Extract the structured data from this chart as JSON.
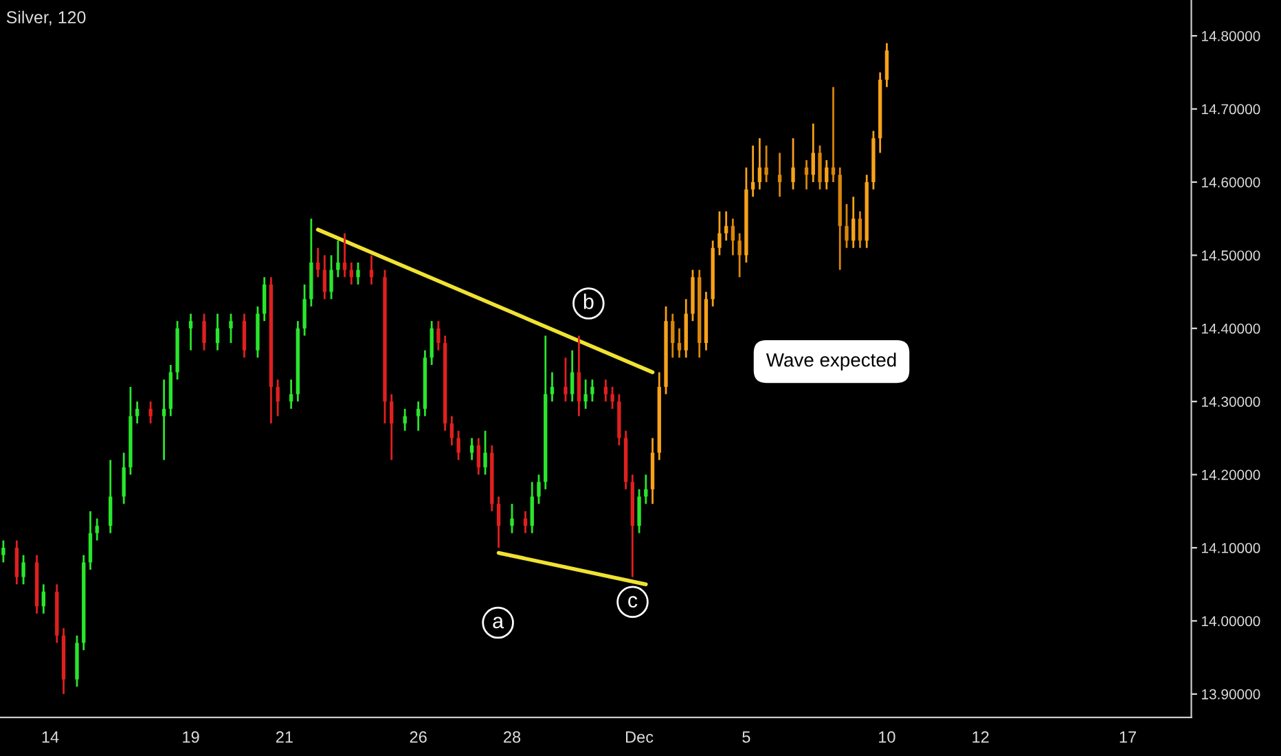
{
  "chart_data": {
    "type": "candlestick",
    "title": "Silver, 120",
    "ylim": [
      13.868,
      14.849
    ],
    "yticks": [
      {
        "value": 13.9,
        "label": "13.90000"
      },
      {
        "value": 14.0,
        "label": "14.00000"
      },
      {
        "value": 14.1,
        "label": "14.10000"
      },
      {
        "value": 14.2,
        "label": "14.20000"
      },
      {
        "value": 14.3,
        "label": "14.30000"
      },
      {
        "value": 14.4,
        "label": "14.40000"
      },
      {
        "value": 14.5,
        "label": "14.50000"
      },
      {
        "value": 14.6,
        "label": "14.60000"
      },
      {
        "value": 14.7,
        "label": "14.70000"
      },
      {
        "value": 14.8,
        "label": "14.80000"
      }
    ],
    "grid": false,
    "categories": [
      null,
      null,
      null,
      null,
      null,
      null,
      null,
      "14",
      null,
      null,
      null,
      null,
      null,
      null,
      null,
      null,
      null,
      null,
      null,
      null,
      null,
      null,
      null,
      null,
      null,
      null,
      null,
      null,
      "19",
      null,
      null,
      null,
      null,
      null,
      null,
      null,
      null,
      null,
      null,
      null,
      null,
      null,
      "21",
      null,
      null,
      null,
      null,
      null,
      null,
      null,
      null,
      null,
      null,
      null,
      null,
      null,
      null,
      null,
      null,
      null,
      null,
      null,
      "26",
      null,
      null,
      null,
      null,
      null,
      null,
      null,
      null,
      null,
      null,
      null,
      null,
      null,
      "28",
      null,
      null,
      null,
      null,
      null,
      null,
      null,
      null,
      null,
      null,
      null,
      null,
      null,
      null,
      null,
      null,
      null,
      null,
      "Dec",
      null,
      null,
      null,
      null,
      null,
      null,
      null,
      null,
      null,
      null,
      null,
      null,
      null,
      null,
      null,
      "5",
      null,
      null,
      null,
      null,
      null,
      null,
      null,
      null,
      null,
      null,
      null,
      null,
      null,
      null,
      null,
      null,
      null,
      null,
      null,
      null,
      "10",
      null,
      null,
      null,
      null,
      null,
      null,
      null,
      null,
      null,
      null,
      null,
      null,
      null,
      "12",
      null,
      null,
      null,
      null,
      null,
      null,
      null,
      null,
      null,
      null,
      null,
      null,
      null,
      null,
      null,
      null,
      null,
      null,
      null,
      null,
      null,
      "17",
      null,
      null,
      null,
      null,
      null,
      null,
      null,
      null,
      null
    ],
    "series": [
      {
        "type": "candlestick",
        "ohlc": [
          [
            14.09,
            14.11,
            14.08,
            14.1
          ],
          null,
          [
            14.1,
            14.11,
            14.05,
            14.06
          ],
          [
            14.06,
            14.09,
            14.05,
            14.08
          ],
          null,
          [
            14.08,
            14.09,
            14.01,
            14.02
          ],
          [
            14.02,
            14.05,
            14.01,
            14.04
          ],
          null,
          [
            14.04,
            14.05,
            13.97,
            13.98
          ],
          [
            13.98,
            13.99,
            13.9,
            13.92
          ],
          null,
          [
            13.92,
            13.98,
            13.91,
            13.97
          ],
          [
            13.97,
            14.09,
            13.96,
            14.08
          ],
          [
            14.08,
            14.15,
            14.07,
            14.12
          ],
          [
            14.12,
            14.14,
            14.11,
            14.13
          ],
          null,
          [
            14.13,
            14.22,
            14.12,
            14.17
          ],
          null,
          [
            14.17,
            14.23,
            14.16,
            14.21
          ],
          [
            14.21,
            14.32,
            14.2,
            14.28
          ],
          [
            14.28,
            14.3,
            14.27,
            14.29
          ],
          null,
          [
            14.29,
            14.3,
            14.27,
            14.28
          ],
          null,
          [
            14.28,
            14.33,
            14.22,
            14.29
          ],
          [
            14.29,
            14.35,
            14.28,
            14.34
          ],
          [
            14.34,
            14.41,
            14.33,
            14.4
          ],
          null,
          [
            14.4,
            14.42,
            14.37,
            14.41
          ],
          null,
          [
            14.41,
            14.42,
            14.37,
            14.38
          ],
          null,
          [
            14.38,
            14.42,
            14.37,
            14.4
          ],
          null,
          [
            14.4,
            14.42,
            14.38,
            14.41
          ],
          null,
          [
            14.41,
            14.42,
            14.36,
            14.37
          ],
          null,
          [
            14.37,
            14.43,
            14.36,
            14.42
          ],
          [
            14.42,
            14.47,
            14.41,
            14.46
          ],
          [
            14.46,
            14.47,
            14.27,
            14.32
          ],
          [
            14.32,
            14.33,
            14.28,
            14.3
          ],
          null,
          [
            14.3,
            14.33,
            14.29,
            14.31
          ],
          [
            14.31,
            14.41,
            14.3,
            14.4
          ],
          [
            14.4,
            14.46,
            14.39,
            14.44
          ],
          [
            14.44,
            14.55,
            14.43,
            14.49
          ],
          [
            14.49,
            14.51,
            14.47,
            14.48
          ],
          [
            14.48,
            14.5,
            14.44,
            14.45
          ],
          [
            14.45,
            14.5,
            14.44,
            14.48
          ],
          [
            14.48,
            14.52,
            14.47,
            14.49
          ],
          [
            14.49,
            14.53,
            14.47,
            14.48
          ],
          [
            14.48,
            14.49,
            14.46,
            14.47
          ],
          [
            14.47,
            14.49,
            14.46,
            14.48
          ],
          null,
          [
            14.48,
            14.5,
            14.46,
            14.47
          ],
          null,
          [
            14.47,
            14.48,
            14.27,
            14.3
          ],
          [
            14.3,
            14.31,
            14.22,
            14.27
          ],
          null,
          [
            14.27,
            14.29,
            14.26,
            14.28
          ],
          null,
          [
            14.28,
            14.3,
            14.26,
            14.29
          ],
          [
            14.29,
            14.37,
            14.28,
            14.36
          ],
          [
            14.36,
            14.41,
            14.35,
            14.4
          ],
          [
            14.4,
            14.41,
            14.37,
            14.38
          ],
          [
            14.38,
            14.39,
            14.26,
            14.27
          ],
          [
            14.27,
            14.28,
            14.24,
            14.25
          ],
          [
            14.25,
            14.26,
            14.22,
            14.23
          ],
          null,
          [
            14.23,
            14.25,
            14.22,
            14.24
          ],
          [
            14.24,
            14.25,
            14.2,
            14.21
          ],
          [
            14.21,
            14.26,
            14.2,
            14.23
          ],
          [
            14.23,
            14.24,
            14.15,
            14.16
          ],
          [
            14.16,
            14.17,
            14.1,
            14.13
          ],
          null,
          [
            14.13,
            14.16,
            14.12,
            14.14
          ],
          null,
          [
            14.14,
            14.15,
            14.12,
            14.13
          ],
          [
            14.13,
            14.19,
            14.12,
            14.17
          ],
          [
            14.17,
            14.2,
            14.16,
            14.19
          ],
          [
            14.19,
            14.39,
            14.18,
            14.31
          ],
          [
            14.31,
            14.34,
            14.3,
            14.32
          ],
          null,
          [
            14.32,
            14.36,
            14.3,
            14.31
          ],
          [
            14.31,
            14.37,
            14.3,
            14.34
          ],
          [
            14.34,
            14.39,
            14.28,
            14.3
          ],
          [
            14.3,
            14.33,
            14.29,
            14.31
          ],
          [
            14.31,
            14.33,
            14.3,
            14.32
          ],
          null,
          [
            14.32,
            14.33,
            14.3,
            14.31
          ],
          [
            14.31,
            14.32,
            14.29,
            14.3
          ],
          [
            14.3,
            14.31,
            14.24,
            14.25
          ],
          [
            14.25,
            14.26,
            14.18,
            14.19
          ],
          [
            14.19,
            14.2,
            14.06,
            14.13
          ],
          [
            14.13,
            14.18,
            14.12,
            14.17
          ],
          [
            14.17,
            14.2,
            14.16,
            14.18
          ],
          null,
          null,
          null,
          null,
          null,
          null,
          null,
          null,
          null,
          null,
          null,
          null,
          null,
          null,
          null,
          null,
          null,
          null,
          null,
          null,
          null,
          null,
          null,
          null,
          null,
          null,
          null,
          null,
          null,
          null,
          null,
          null,
          null,
          null,
          null,
          null,
          null,
          null,
          null,
          null,
          null,
          null,
          null,
          null,
          null,
          null,
          null,
          null,
          null,
          null,
          null,
          null,
          null,
          null,
          null,
          null,
          null,
          null,
          null,
          null,
          null,
          null,
          null,
          null,
          null,
          null,
          null,
          null,
          null,
          null,
          null,
          null,
          null,
          null,
          null,
          null,
          null,
          null,
          null,
          null,
          null
        ],
        "colors": [
          "#29e62c",
          null,
          "#e0201f",
          "#29e62c",
          null,
          "#e0201f",
          "#29e62c",
          null,
          "#e0201f",
          "#e0201f",
          null,
          "#29e62c",
          "#29e62c",
          "#29e62c",
          "#29e62c",
          null,
          "#29e62c",
          null,
          "#29e62c",
          "#29e62c",
          "#29e62c",
          null,
          "#e0201f",
          null,
          "#29e62c",
          "#29e62c",
          "#29e62c",
          null,
          "#29e62c",
          null,
          "#e0201f",
          null,
          "#29e62c",
          null,
          "#29e62c",
          null,
          "#e0201f",
          null,
          "#29e62c",
          "#29e62c",
          "#e0201f",
          "#e0201f",
          null,
          "#29e62c",
          "#29e62c",
          "#29e62c",
          "#29e62c",
          "#e0201f",
          "#e0201f",
          "#29e62c",
          "#29e62c",
          "#e0201f",
          "#e0201f",
          "#29e62c",
          null,
          "#e0201f",
          null,
          "#e0201f",
          "#e0201f",
          null,
          "#29e62c",
          null,
          "#29e62c",
          "#29e62c",
          "#29e62c",
          "#e0201f",
          "#e0201f",
          "#e0201f",
          "#e0201f",
          null,
          "#29e62c",
          "#e0201f",
          "#29e62c",
          "#e0201f",
          "#e0201f",
          null,
          "#29e62c",
          null,
          "#e0201f",
          "#29e62c",
          "#29e62c",
          "#29e62c",
          "#29e62c",
          null,
          "#e0201f",
          "#29e62c",
          "#e0201f",
          "#29e62c",
          "#29e62c",
          null,
          "#e0201f",
          "#e0201f",
          "#e0201f",
          "#e0201f",
          "#e0201f",
          "#29e62c",
          "#29e62c",
          null,
          null,
          null,
          null,
          null,
          null,
          null,
          null,
          null,
          null,
          null,
          null,
          null,
          null,
          null,
          null,
          null,
          null,
          null,
          null,
          null,
          null,
          null,
          null,
          null,
          null,
          null,
          null,
          null,
          null,
          null,
          null,
          null,
          null,
          null,
          null,
          null,
          null,
          null,
          null,
          null,
          null,
          null,
          null,
          null,
          null,
          null,
          null,
          null,
          null,
          null,
          null,
          null,
          null,
          null,
          null,
          null,
          null,
          null,
          null,
          null,
          null,
          null,
          null,
          null,
          null,
          null,
          null,
          null,
          null,
          null,
          null,
          null,
          null,
          null,
          null,
          null,
          null,
          null,
          null,
          null
        ]
      },
      {
        "type": "candlestick",
        "ohlc": [
          null,
          null,
          null,
          null,
          null,
          null,
          null,
          null,
          null,
          null,
          null,
          null,
          null,
          null,
          null,
          null,
          null,
          null,
          null,
          null,
          null,
          null,
          null,
          null,
          null,
          null,
          null,
          null,
          null,
          null,
          null,
          null,
          null,
          null,
          null,
          null,
          null,
          null,
          null,
          null,
          null,
          null,
          null,
          null,
          null,
          null,
          null,
          null,
          null,
          null,
          null,
          null,
          null,
          null,
          null,
          null,
          null,
          null,
          null,
          null,
          null,
          null,
          null,
          null,
          null,
          null,
          null,
          null,
          null,
          null,
          null,
          null,
          null,
          null,
          null,
          null,
          null,
          null,
          null,
          null,
          null,
          null,
          null,
          null,
          null,
          null,
          null,
          null,
          null,
          null,
          null,
          null,
          null,
          null,
          null,
          null,
          null,
          [
            14.18,
            14.25,
            14.16,
            14.23
          ],
          [
            14.23,
            14.34,
            14.22,
            14.32
          ],
          [
            14.32,
            14.43,
            14.31,
            14.41
          ],
          [
            14.41,
            14.42,
            14.36,
            14.38
          ],
          [
            14.38,
            14.4,
            14.36,
            14.37
          ],
          [
            14.37,
            14.44,
            14.36,
            14.42
          ],
          [
            14.42,
            14.48,
            14.41,
            14.47
          ],
          [
            14.47,
            14.48,
            14.36,
            14.38
          ],
          [
            14.38,
            14.45,
            14.37,
            14.44
          ],
          [
            14.44,
            14.52,
            14.43,
            14.51
          ],
          [
            14.51,
            14.56,
            14.5,
            14.53
          ],
          [
            14.53,
            14.56,
            14.52,
            14.54
          ],
          [
            14.54,
            14.55,
            14.5,
            14.52
          ],
          [
            14.52,
            14.53,
            14.47,
            14.5
          ],
          [
            14.5,
            14.62,
            14.49,
            14.59
          ],
          [
            14.59,
            14.65,
            14.58,
            14.6
          ],
          [
            14.6,
            14.66,
            14.59,
            14.62
          ],
          [
            14.62,
            14.65,
            14.6,
            14.61
          ],
          null,
          [
            14.61,
            14.64,
            14.58,
            14.6
          ],
          null,
          [
            14.6,
            14.66,
            14.59,
            14.62
          ],
          null,
          [
            14.62,
            14.63,
            14.59,
            14.61
          ],
          [
            14.61,
            14.68,
            14.6,
            14.64
          ],
          [
            14.64,
            14.65,
            14.59,
            14.6
          ],
          [
            14.6,
            14.63,
            14.59,
            14.62
          ],
          [
            14.62,
            14.73,
            14.6,
            14.61
          ],
          [
            14.61,
            14.62,
            14.48,
            14.54
          ],
          [
            14.54,
            14.57,
            14.51,
            14.52
          ],
          [
            14.52,
            14.58,
            14.51,
            14.55
          ],
          [
            14.55,
            14.56,
            14.51,
            14.52
          ],
          [
            14.52,
            14.61,
            14.51,
            14.6
          ],
          [
            14.6,
            14.67,
            14.59,
            14.66
          ],
          [
            14.66,
            14.75,
            14.64,
            14.74
          ],
          [
            14.74,
            14.79,
            14.73,
            14.78
          ],
          null,
          null,
          null,
          null,
          null,
          null,
          null,
          null,
          null,
          null,
          null,
          null,
          null,
          null,
          null,
          null,
          null,
          null,
          null,
          null,
          null,
          null,
          null,
          null,
          null,
          null,
          null,
          null,
          null,
          null,
          null,
          null,
          null,
          null,
          null,
          null,
          null,
          null,
          null,
          null,
          null,
          null,
          null,
          null,
          null
        ],
        "colors": [
          null,
          null,
          null,
          null,
          null,
          null,
          null,
          null,
          null,
          null,
          null,
          null,
          null,
          null,
          null,
          null,
          null,
          null,
          null,
          null,
          null,
          null,
          null,
          null,
          null,
          null,
          null,
          null,
          null,
          null,
          null,
          null,
          null,
          null,
          null,
          null,
          null,
          null,
          null,
          null,
          null,
          null,
          null,
          null,
          null,
          null,
          null,
          null,
          null,
          null,
          null,
          null,
          null,
          null,
          null,
          null,
          null,
          null,
          null,
          null,
          null,
          null,
          null,
          null,
          null,
          null,
          null,
          null,
          null,
          null,
          null,
          null,
          null,
          null,
          null,
          null,
          null,
          null,
          null,
          null,
          null,
          null,
          null,
          null,
          null,
          null,
          null,
          null,
          null,
          null,
          null,
          null,
          null,
          null,
          null,
          null,
          null,
          "#f7a21b",
          "#f7a21b",
          "#f7a21b",
          "#d9860c",
          "#d9860c",
          "#f7a21b",
          "#f7a21b",
          "#d9860c",
          "#f7a21b",
          "#f7a21b",
          "#f7a21b",
          "#f7a21b",
          "#d9860c",
          "#d9860c",
          "#f7a21b",
          "#f7a21b",
          "#f7a21b",
          "#d9860c",
          null,
          "#d9860c",
          null,
          "#f7a21b",
          null,
          "#d9860c",
          "#f7a21b",
          "#d9860c",
          "#f7a21b",
          "#d9860c",
          "#d9860c",
          "#d9860c",
          "#f7a21b",
          "#d9860c",
          "#f7a21b",
          "#f7a21b",
          "#f7a21b",
          "#f7a21b",
          null,
          null,
          null,
          null,
          null,
          null,
          null,
          null,
          null,
          null,
          null,
          null,
          null,
          null,
          null,
          null,
          null,
          null,
          null,
          null,
          null,
          null,
          null,
          null,
          null,
          null,
          null,
          null,
          null,
          null,
          null,
          null,
          null,
          null,
          null,
          null,
          null,
          null,
          null,
          null,
          null,
          null,
          null,
          null,
          null
        ]
      },
      {
        "type": "line",
        "color": "#f0e232",
        "values": [
          null,
          null,
          null,
          null,
          null,
          null,
          null,
          null,
          null,
          null,
          null,
          null,
          null,
          null,
          null,
          null,
          null,
          null,
          null,
          null,
          null,
          null,
          null,
          null,
          null,
          null,
          null,
          null,
          null,
          null,
          null,
          null,
          null,
          null,
          null,
          null,
          null,
          null,
          null,
          null,
          null,
          null,
          null,
          null,
          null,
          null,
          null,
          14.535,
          null,
          null,
          null,
          null,
          null,
          null,
          null,
          null,
          null,
          null,
          null,
          null,
          null,
          null,
          null,
          null,
          null,
          null,
          null,
          null,
          null,
          null,
          null,
          null,
          null,
          null,
          null,
          null,
          null,
          null,
          null,
          null,
          null,
          null,
          null,
          null,
          null,
          null,
          null,
          null,
          null,
          null,
          null,
          null,
          null,
          null,
          null,
          null,
          null,
          14.34,
          null,
          null,
          null,
          null,
          null,
          null,
          null,
          null,
          null,
          null,
          null,
          null,
          null,
          null,
          null,
          null,
          null,
          null,
          null,
          null,
          null,
          null,
          null,
          null,
          null,
          null,
          null,
          null,
          null,
          null,
          null,
          null,
          null,
          null,
          null,
          null,
          null,
          null,
          null,
          null,
          null,
          null,
          null,
          null,
          null,
          null,
          null,
          null,
          null,
          null,
          null,
          null,
          null,
          null,
          null,
          null,
          null,
          null,
          null,
          null,
          null,
          null,
          null,
          null,
          null,
          null,
          null,
          null,
          null,
          null,
          null,
          null,
          null,
          null,
          null,
          null,
          null,
          null,
          null,
          null
        ]
      },
      {
        "type": "line",
        "color": "#f0e232",
        "values": [
          null,
          null,
          null,
          null,
          null,
          null,
          null,
          null,
          null,
          null,
          null,
          null,
          null,
          null,
          null,
          null,
          null,
          null,
          null,
          null,
          null,
          null,
          null,
          null,
          null,
          null,
          null,
          null,
          null,
          null,
          null,
          null,
          null,
          null,
          null,
          null,
          null,
          null,
          null,
          null,
          null,
          null,
          null,
          null,
          null,
          null,
          null,
          null,
          null,
          null,
          null,
          null,
          null,
          null,
          null,
          null,
          null,
          null,
          null,
          null,
          null,
          null,
          null,
          null,
          null,
          null,
          null,
          null,
          null,
          null,
          null,
          null,
          null,
          null,
          14.093,
          null,
          null,
          null,
          null,
          null,
          null,
          null,
          null,
          null,
          null,
          null,
          null,
          null,
          null,
          null,
          null,
          null,
          null,
          null,
          null,
          null,
          14.05,
          null,
          null,
          null,
          null,
          null,
          null,
          null,
          null,
          null,
          null,
          null,
          null,
          null,
          null,
          null,
          null,
          null,
          null,
          null,
          null,
          null,
          null,
          null,
          null,
          null,
          null,
          null,
          null,
          null,
          null,
          null,
          null,
          null,
          null,
          null,
          null,
          null,
          null,
          null,
          null,
          null,
          null,
          null,
          null,
          null,
          null,
          null,
          null,
          null,
          null,
          null,
          null,
          null,
          null,
          null,
          null,
          null,
          null,
          null,
          null,
          null,
          null,
          null,
          null,
          null,
          null,
          null,
          null,
          null,
          null,
          null,
          null,
          null,
          null,
          null,
          null,
          null,
          null,
          null,
          null,
          null
        ]
      }
    ],
    "annotations": [
      "a",
      "b",
      "c",
      "Wave expected"
    ]
  }
}
